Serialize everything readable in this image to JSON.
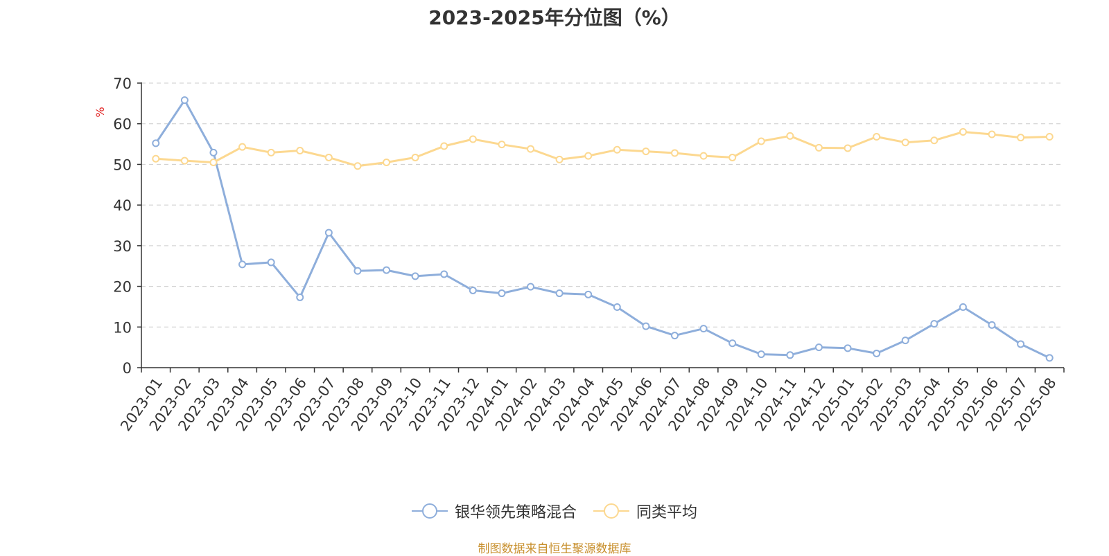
{
  "chart_data": {
    "type": "line",
    "title": "2023-2025年分位图（%）",
    "ylabel": "%",
    "xlabel": "",
    "ylim": [
      0,
      70
    ],
    "yticks": [
      0,
      10,
      20,
      30,
      40,
      50,
      60,
      70
    ],
    "grid": true,
    "legend_position": "bottom",
    "x": [
      "2023-01",
      "2023-02",
      "2023-03",
      "2023-04",
      "2023-05",
      "2023-06",
      "2023-07",
      "2023-08",
      "2023-09",
      "2023-10",
      "2023-11",
      "2023-12",
      "2024-01",
      "2024-02",
      "2024-03",
      "2024-04",
      "2024-05",
      "2024-06",
      "2024-07",
      "2024-08",
      "2024-09",
      "2024-10",
      "2024-11",
      "2024-12",
      "2025-01",
      "2025-02",
      "2025-03",
      "2025-04",
      "2025-05",
      "2025-06",
      "2025-07",
      "2025-08"
    ],
    "series": [
      {
        "name": "银华领先策略混合",
        "color": "#8eaedb",
        "values": [
          55.2,
          65.8,
          52.9,
          25.4,
          25.9,
          17.3,
          33.2,
          23.8,
          24.0,
          22.5,
          23.0,
          19.0,
          18.3,
          19.9,
          18.3,
          18.0,
          14.9,
          10.2,
          7.9,
          9.6,
          6.0,
          3.3,
          3.1,
          5.0,
          4.8,
          3.5,
          6.7,
          10.8,
          14.9,
          10.5,
          5.8,
          2.4
        ]
      },
      {
        "name": "同类平均",
        "color": "#fcd890",
        "values": [
          51.4,
          50.9,
          50.5,
          54.3,
          52.9,
          53.4,
          51.7,
          49.6,
          50.5,
          51.7,
          54.5,
          56.2,
          54.9,
          53.8,
          51.2,
          52.1,
          53.6,
          53.2,
          52.8,
          52.1,
          51.7,
          55.7,
          57.0,
          54.1,
          54.0,
          56.8,
          55.4,
          55.9,
          58.0,
          57.4,
          56.6,
          56.8
        ]
      }
    ]
  },
  "footer": {
    "source": "制图数据来自恒生聚源数据库"
  }
}
